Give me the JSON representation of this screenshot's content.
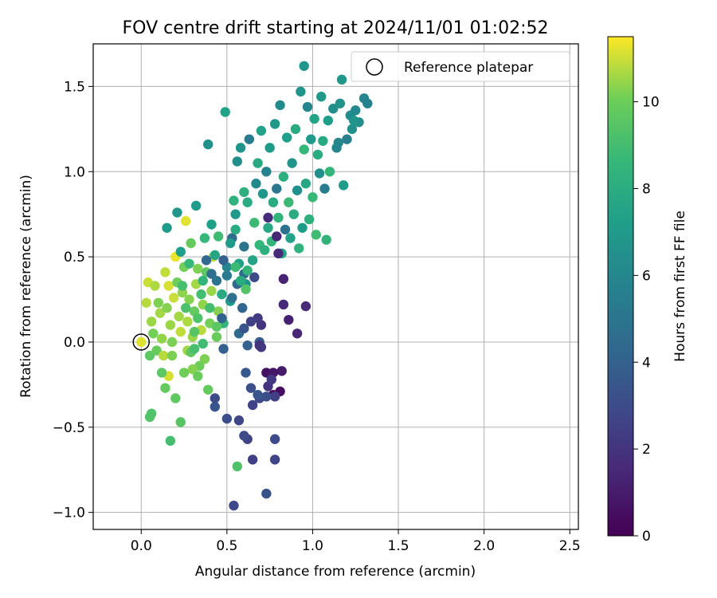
{
  "chart_data": {
    "type": "scatter",
    "title": "FOV centre drift starting at 2024/11/01 01:02:52",
    "xlabel": "Angular distance from reference (arcmin)",
    "ylabel": "Rotation from reference (arcmin)",
    "xlim": [
      -0.28,
      2.55
    ],
    "ylim": [
      -1.1,
      1.75
    ],
    "xticks": [
      0.0,
      0.5,
      1.0,
      1.5,
      2.0,
      2.5
    ],
    "xtick_labels": [
      "0.0",
      "0.5",
      "1.0",
      "1.5",
      "2.0",
      "2.5"
    ],
    "yticks": [
      -1.0,
      -0.5,
      0.0,
      0.5,
      1.0,
      1.5
    ],
    "ytick_labels": [
      "−1.0",
      "−0.5",
      "0.0",
      "0.5",
      "1.0",
      "1.5"
    ],
    "grid": true,
    "legend": {
      "placement": "top-right",
      "label": "Reference platepar"
    },
    "colormap": "viridis",
    "colorbar": {
      "label": "Hours from first FF file",
      "range": [
        0,
        11.5
      ],
      "ticks": [
        0,
        2,
        4,
        6,
        8,
        10
      ],
      "tick_labels": [
        "0",
        "2",
        "4",
        "6",
        "8",
        "10"
      ]
    },
    "reference_point": {
      "x": 0.0,
      "y": 0.0
    },
    "points": [
      {
        "x": 0.0,
        "y": 0.0,
        "h": 11.2
      },
      {
        "x": 0.03,
        "y": 0.23,
        "h": 10.8
      },
      {
        "x": 0.04,
        "y": 0.35,
        "h": 11.0
      },
      {
        "x": 0.06,
        "y": 0.12,
        "h": 10.5
      },
      {
        "x": 0.05,
        "y": -0.08,
        "h": 9.6
      },
      {
        "x": 0.08,
        "y": 0.33,
        "h": 10.7
      },
      {
        "x": 0.07,
        "y": 0.05,
        "h": 10.1
      },
      {
        "x": 0.1,
        "y": 0.23,
        "h": 10.2
      },
      {
        "x": 0.09,
        "y": -0.05,
        "h": 9.9
      },
      {
        "x": 0.11,
        "y": 0.17,
        "h": 10.6
      },
      {
        "x": 0.12,
        "y": 0.02,
        "h": 10.4
      },
      {
        "x": 0.13,
        "y": -0.08,
        "h": 10.8
      },
      {
        "x": 0.14,
        "y": 0.41,
        "h": 10.9
      },
      {
        "x": 0.15,
        "y": 0.2,
        "h": 10.3
      },
      {
        "x": 0.16,
        "y": 0.33,
        "h": 11.1
      },
      {
        "x": 0.17,
        "y": 0.1,
        "h": 10.5
      },
      {
        "x": 0.18,
        "y": 0.0,
        "h": 10.2
      },
      {
        "x": 0.19,
        "y": 0.26,
        "h": 11.0
      },
      {
        "x": 0.2,
        "y": 0.5,
        "h": 11.3
      },
      {
        "x": 0.21,
        "y": 0.35,
        "h": 10.0
      },
      {
        "x": 0.22,
        "y": 0.15,
        "h": 10.6
      },
      {
        "x": 0.23,
        "y": 0.06,
        "h": 10.9
      },
      {
        "x": 0.24,
        "y": 0.29,
        "h": 10.4
      },
      {
        "x": 0.25,
        "y": 0.44,
        "h": 10.1
      },
      {
        "x": 0.26,
        "y": 0.71,
        "h": 11.2
      },
      {
        "x": 0.27,
        "y": 0.12,
        "h": 10.7
      },
      {
        "x": 0.28,
        "y": 0.25,
        "h": 10.3
      },
      {
        "x": 0.3,
        "y": 0.03,
        "h": 10.5
      },
      {
        "x": 0.31,
        "y": 0.18,
        "h": 9.8
      },
      {
        "x": 0.32,
        "y": 0.34,
        "h": 10.6
      },
      {
        "x": 0.33,
        "y": 0.43,
        "h": 10.2
      },
      {
        "x": 0.34,
        "y": -0.14,
        "h": 10.0
      },
      {
        "x": 0.35,
        "y": 0.07,
        "h": 10.8
      },
      {
        "x": 0.36,
        "y": 0.22,
        "h": 10.4
      },
      {
        "x": 0.38,
        "y": 0.41,
        "h": 9.6
      },
      {
        "x": 0.4,
        "y": 0.11,
        "h": 10.1
      },
      {
        "x": 0.41,
        "y": 0.3,
        "h": 10.5
      },
      {
        "x": 0.42,
        "y": 0.5,
        "h": 11.0
      },
      {
        "x": 0.44,
        "y": 0.03,
        "h": 9.9
      },
      {
        "x": 0.45,
        "y": 0.18,
        "h": 10.3
      },
      {
        "x": 0.16,
        "y": -0.2,
        "h": 11.1
      },
      {
        "x": 0.18,
        "y": -0.08,
        "h": 10.2
      },
      {
        "x": 0.2,
        "y": -0.33,
        "h": 9.7
      },
      {
        "x": 0.23,
        "y": -0.47,
        "h": 9.5
      },
      {
        "x": 0.25,
        "y": -0.18,
        "h": 10.0
      },
      {
        "x": 0.27,
        "y": -0.05,
        "h": 10.6
      },
      {
        "x": 0.3,
        "y": -0.16,
        "h": 10.3
      },
      {
        "x": 0.33,
        "y": -0.2,
        "h": 9.9
      },
      {
        "x": 0.37,
        "y": -0.1,
        "h": 10.2
      },
      {
        "x": 0.39,
        "y": -0.28,
        "h": 9.8
      },
      {
        "x": 0.05,
        "y": -0.44,
        "h": 9.4
      },
      {
        "x": 0.06,
        "y": -0.42,
        "h": 9.3
      },
      {
        "x": 0.12,
        "y": -0.18,
        "h": 9.6
      },
      {
        "x": 0.14,
        "y": -0.27,
        "h": 9.8
      },
      {
        "x": 0.17,
        "y": -0.58,
        "h": 9.0
      },
      {
        "x": 0.15,
        "y": 0.67,
        "h": 7.0
      },
      {
        "x": 0.21,
        "y": 0.76,
        "h": 6.8
      },
      {
        "x": 0.23,
        "y": 0.53,
        "h": 7.2
      },
      {
        "x": 0.29,
        "y": 0.58,
        "h": 9.8
      },
      {
        "x": 0.32,
        "y": 0.8,
        "h": 7.1
      },
      {
        "x": 0.37,
        "y": 0.61,
        "h": 8.6
      },
      {
        "x": 0.39,
        "y": 1.16,
        "h": 6.5
      },
      {
        "x": 0.41,
        "y": 0.69,
        "h": 7.3
      },
      {
        "x": 0.43,
        "y": 0.51,
        "h": 7.6
      },
      {
        "x": 0.45,
        "y": 0.62,
        "h": 8.9
      },
      {
        "x": 0.47,
        "y": 0.28,
        "h": 7.8
      },
      {
        "x": 0.48,
        "y": 0.11,
        "h": 8.4
      },
      {
        "x": 0.5,
        "y": 0.44,
        "h": 6.0
      },
      {
        "x": 0.52,
        "y": 0.24,
        "h": 7.0
      },
      {
        "x": 0.53,
        "y": 0.61,
        "h": 4.5
      },
      {
        "x": 0.54,
        "y": 0.83,
        "h": 8.3
      },
      {
        "x": 0.55,
        "y": 0.66,
        "h": 8.0
      },
      {
        "x": 0.56,
        "y": 1.06,
        "h": 6.3
      },
      {
        "x": 0.57,
        "y": 0.46,
        "h": 7.3
      },
      {
        "x": 0.58,
        "y": 1.14,
        "h": 6.7
      },
      {
        "x": 0.6,
        "y": 0.56,
        "h": 5.0
      },
      {
        "x": 0.61,
        "y": 0.34,
        "h": 6.6
      },
      {
        "x": 0.62,
        "y": 0.82,
        "h": 8.0
      },
      {
        "x": 0.63,
        "y": 1.19,
        "h": 5.3
      },
      {
        "x": 0.65,
        "y": 0.48,
        "h": 7.5
      },
      {
        "x": 0.66,
        "y": 0.7,
        "h": 8.8
      },
      {
        "x": 0.67,
        "y": 0.93,
        "h": 6.1
      },
      {
        "x": 0.68,
        "y": 1.05,
        "h": 7.8
      },
      {
        "x": 0.69,
        "y": 0.57,
        "h": 8.6
      },
      {
        "x": 0.7,
        "y": 1.24,
        "h": 7.4
      },
      {
        "x": 0.71,
        "y": 0.87,
        "h": 6.8
      },
      {
        "x": 0.72,
        "y": 0.54,
        "h": 8.2
      },
      {
        "x": 0.73,
        "y": 1.0,
        "h": 5.8
      },
      {
        "x": 0.74,
        "y": 0.67,
        "h": 7.7
      },
      {
        "x": 0.75,
        "y": 1.14,
        "h": 7.1
      },
      {
        "x": 0.76,
        "y": 0.59,
        "h": 8.5
      },
      {
        "x": 0.77,
        "y": 0.82,
        "h": 7.9
      },
      {
        "x": 0.78,
        "y": 1.28,
        "h": 6.9
      },
      {
        "x": 0.79,
        "y": 0.9,
        "h": 5.2
      },
      {
        "x": 0.8,
        "y": 0.73,
        "h": 8.4
      },
      {
        "x": 0.81,
        "y": 1.39,
        "h": 6.2
      },
      {
        "x": 0.82,
        "y": 0.52,
        "h": 7.6
      },
      {
        "x": 0.83,
        "y": 0.97,
        "h": 8.1
      },
      {
        "x": 0.84,
        "y": 0.66,
        "h": 4.9
      },
      {
        "x": 0.85,
        "y": 1.2,
        "h": 7.2
      },
      {
        "x": 0.86,
        "y": 0.82,
        "h": 8.8
      },
      {
        "x": 0.87,
        "y": 0.61,
        "h": 7.4
      },
      {
        "x": 0.88,
        "y": 1.05,
        "h": 6.6
      },
      {
        "x": 0.89,
        "y": 0.75,
        "h": 8.0
      },
      {
        "x": 0.9,
        "y": 1.25,
        "h": 7.9
      },
      {
        "x": 0.91,
        "y": 0.89,
        "h": 6.5
      },
      {
        "x": 0.92,
        "y": 0.55,
        "h": 8.3
      },
      {
        "x": 0.93,
        "y": 1.47,
        "h": 6.7
      },
      {
        "x": 0.94,
        "y": 0.67,
        "h": 7.1
      },
      {
        "x": 0.95,
        "y": 1.13,
        "h": 8.6
      },
      {
        "x": 0.96,
        "y": 0.93,
        "h": 7.7
      },
      {
        "x": 0.97,
        "y": 1.38,
        "h": 6.0
      },
      {
        "x": 0.98,
        "y": 0.72,
        "h": 8.2
      },
      {
        "x": 0.99,
        "y": 1.19,
        "h": 7.0
      },
      {
        "x": 1.0,
        "y": 0.85,
        "h": 8.7
      },
      {
        "x": 1.01,
        "y": 1.31,
        "h": 7.5
      },
      {
        "x": 1.02,
        "y": 0.63,
        "h": 8.9
      },
      {
        "x": 1.03,
        "y": 1.1,
        "h": 8.0
      },
      {
        "x": 1.04,
        "y": 0.99,
        "h": 6.4
      },
      {
        "x": 1.05,
        "y": 1.44,
        "h": 6.9
      },
      {
        "x": 1.06,
        "y": 1.18,
        "h": 7.8
      },
      {
        "x": 1.07,
        "y": 0.9,
        "h": 5.5
      },
      {
        "x": 1.08,
        "y": 0.6,
        "h": 8.4
      },
      {
        "x": 1.09,
        "y": 1.3,
        "h": 7.2
      },
      {
        "x": 1.1,
        "y": 1.0,
        "h": 8.5
      },
      {
        "x": 0.95,
        "y": 1.62,
        "h": 6.8
      },
      {
        "x": 1.12,
        "y": 1.37,
        "h": 6.3
      },
      {
        "x": 1.14,
        "y": 1.14,
        "h": 5.9
      },
      {
        "x": 1.16,
        "y": 1.4,
        "h": 6.6
      },
      {
        "x": 1.17,
        "y": 1.54,
        "h": 6.9
      },
      {
        "x": 1.18,
        "y": 0.92,
        "h": 7.1
      },
      {
        "x": 1.2,
        "y": 1.19,
        "h": 5.6
      },
      {
        "x": 1.22,
        "y": 1.33,
        "h": 6.2
      },
      {
        "x": 1.23,
        "y": 1.25,
        "h": 6.5
      },
      {
        "x": 1.25,
        "y": 1.36,
        "h": 6.1
      },
      {
        "x": 1.27,
        "y": 1.29,
        "h": 6.4
      },
      {
        "x": 1.3,
        "y": 1.43,
        "h": 6.0
      },
      {
        "x": 1.32,
        "y": 1.4,
        "h": 5.8
      },
      {
        "x": 1.24,
        "y": 1.3,
        "h": 6.7
      },
      {
        "x": 1.15,
        "y": 1.17,
        "h": 5.9
      },
      {
        "x": 0.49,
        "y": 1.35,
        "h": 7.4
      },
      {
        "x": 0.55,
        "y": 0.75,
        "h": 6.9
      },
      {
        "x": 0.6,
        "y": 0.88,
        "h": 8.2
      },
      {
        "x": 0.74,
        "y": 0.73,
        "h": 1.7
      },
      {
        "x": 0.79,
        "y": 0.62,
        "h": 1.4
      },
      {
        "x": 0.8,
        "y": 0.52,
        "h": 1.6
      },
      {
        "x": 0.83,
        "y": 0.37,
        "h": 1.3
      },
      {
        "x": 0.83,
        "y": 0.22,
        "h": 1.5
      },
      {
        "x": 0.86,
        "y": 0.13,
        "h": 1.2
      },
      {
        "x": 0.91,
        "y": 0.05,
        "h": 1.4
      },
      {
        "x": 0.96,
        "y": 0.21,
        "h": 1.6
      },
      {
        "x": 0.73,
        "y": -0.18,
        "h": 0.6
      },
      {
        "x": 0.77,
        "y": -0.18,
        "h": 0.8
      },
      {
        "x": 0.82,
        "y": -0.17,
        "h": 1.0
      },
      {
        "x": 0.77,
        "y": -0.31,
        "h": 0.4
      },
      {
        "x": 0.81,
        "y": -0.29,
        "h": 0.5
      },
      {
        "x": 0.74,
        "y": -0.26,
        "h": 1.9
      },
      {
        "x": 0.78,
        "y": -0.32,
        "h": 2.4
      },
      {
        "x": 0.69,
        "y": -0.33,
        "h": 2.8
      },
      {
        "x": 0.73,
        "y": -0.32,
        "h": 3.1
      },
      {
        "x": 0.68,
        "y": -0.31,
        "h": 3.5
      },
      {
        "x": 0.64,
        "y": -0.27,
        "h": 3.2
      },
      {
        "x": 0.61,
        "y": -0.18,
        "h": 3.6
      },
      {
        "x": 0.65,
        "y": -0.37,
        "h": 2.6
      },
      {
        "x": 0.76,
        "y": -0.22,
        "h": 2.2
      },
      {
        "x": 0.78,
        "y": -0.57,
        "h": 2.9
      },
      {
        "x": 0.78,
        "y": -0.69,
        "h": 2.7
      },
      {
        "x": 0.65,
        "y": -0.69,
        "h": 2.5
      },
      {
        "x": 0.62,
        "y": -0.57,
        "h": 2.6
      },
      {
        "x": 0.6,
        "y": -0.55,
        "h": 3.0
      },
      {
        "x": 0.57,
        "y": -0.46,
        "h": 2.8
      },
      {
        "x": 0.5,
        "y": -0.45,
        "h": 3.1
      },
      {
        "x": 0.43,
        "y": -0.38,
        "h": 3.4
      },
      {
        "x": 0.43,
        "y": -0.33,
        "h": 3.0
      },
      {
        "x": 0.54,
        "y": -0.96,
        "h": 2.9
      },
      {
        "x": 0.73,
        "y": -0.89,
        "h": 3.3
      },
      {
        "x": 0.56,
        "y": -0.73,
        "h": 9.3
      },
      {
        "x": 0.69,
        "y": 0.0,
        "h": 3.7
      },
      {
        "x": 0.7,
        "y": 0.1,
        "h": 2.0
      },
      {
        "x": 0.68,
        "y": 0.14,
        "h": 2.3
      },
      {
        "x": 0.69,
        "y": -0.02,
        "h": 1.8
      },
      {
        "x": 0.7,
        "y": -0.03,
        "h": 2.1
      },
      {
        "x": 0.64,
        "y": 0.12,
        "h": 2.5
      },
      {
        "x": 0.57,
        "y": 0.05,
        "h": 4.5
      },
      {
        "x": 0.48,
        "y": -0.04,
        "h": 3.9
      },
      {
        "x": 0.6,
        "y": 0.08,
        "h": 3.5
      },
      {
        "x": 0.62,
        "y": -0.02,
        "h": 4.0
      },
      {
        "x": 0.59,
        "y": 0.2,
        "h": 4.2
      },
      {
        "x": 0.56,
        "y": 0.34,
        "h": 4.4
      },
      {
        "x": 0.66,
        "y": 0.38,
        "h": 2.9
      },
      {
        "x": 0.6,
        "y": 0.4,
        "h": 4.6
      },
      {
        "x": 0.58,
        "y": 0.36,
        "h": 8.0
      },
      {
        "x": 0.62,
        "y": 0.42,
        "h": 8.4
      },
      {
        "x": 0.53,
        "y": 0.26,
        "h": 4.8
      },
      {
        "x": 0.47,
        "y": 0.14,
        "h": 4.1
      },
      {
        "x": 0.44,
        "y": 0.36,
        "h": 5.0
      },
      {
        "x": 0.41,
        "y": 0.4,
        "h": 4.7
      },
      {
        "x": 0.38,
        "y": 0.48,
        "h": 4.4
      },
      {
        "x": 0.36,
        "y": 0.36,
        "h": 8.5
      },
      {
        "x": 0.35,
        "y": 0.28,
        "h": 9.0
      },
      {
        "x": 0.33,
        "y": 0.14,
        "h": 9.3
      },
      {
        "x": 0.31,
        "y": 0.06,
        "h": 9.5
      },
      {
        "x": 0.29,
        "y": -0.06,
        "h": 9.7
      },
      {
        "x": 0.26,
        "y": 0.2,
        "h": 9.2
      },
      {
        "x": 0.24,
        "y": 0.33,
        "h": 9.1
      },
      {
        "x": 0.48,
        "y": 0.48,
        "h": 4.0
      },
      {
        "x": 0.5,
        "y": 0.39,
        "h": 5.3
      },
      {
        "x": 0.52,
        "y": 0.58,
        "h": 7.0
      },
      {
        "x": 0.55,
        "y": 0.44,
        "h": 8.8
      },
      {
        "x": 0.61,
        "y": 0.31,
        "h": 9.4
      },
      {
        "x": 0.44,
        "y": 0.09,
        "h": 9.6
      },
      {
        "x": 0.4,
        "y": 0.2,
        "h": 9.0
      },
      {
        "x": 0.36,
        "y": -0.01,
        "h": 8.9
      },
      {
        "x": 0.31,
        "y": -0.04,
        "h": 9.1
      },
      {
        "x": 0.28,
        "y": 0.46,
        "h": 8.7
      }
    ]
  }
}
